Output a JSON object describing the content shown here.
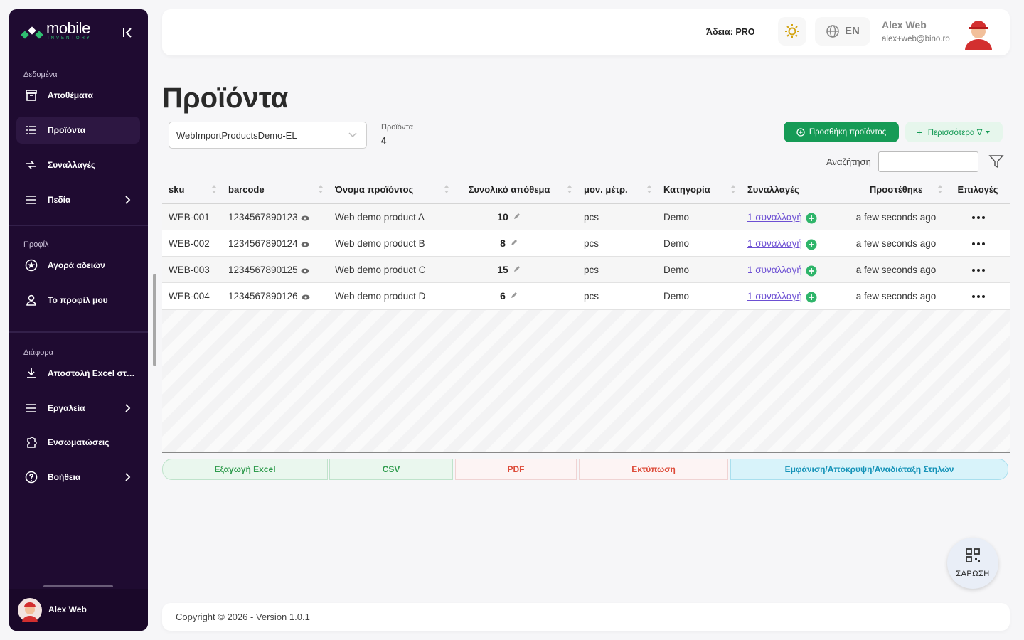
{
  "sidebar": {
    "logo": "mobile",
    "logo_sub": "INVENTORY",
    "sections": [
      {
        "title": "Δεδομένα",
        "items": [
          "Αποθέματα",
          "Προϊόντα",
          "Συναλλαγές",
          "Πεδία"
        ]
      },
      {
        "title": "Προφίλ",
        "items": [
          "Αγορά αδειών",
          "Το προφίλ μου"
        ]
      },
      {
        "title": "Διάφορα",
        "items": [
          "Αποστολή Excel στο email",
          "Εργαλεία",
          "Ενσωματώσεις",
          "Βοήθεια"
        ]
      }
    ],
    "user": "Alex Web"
  },
  "header": {
    "license": "Άδεια: PRO",
    "language": "EN",
    "user_name": "Alex Web",
    "user_email": "alex+web@bino.ro"
  },
  "page": {
    "title": "Προϊόντα",
    "dataset": "WebImportProductsDemo-EL",
    "count_label": "Προϊόντα",
    "count": 4,
    "add_button": "Προσθήκη προϊόντος",
    "more_button": "Περισσότερα ∇",
    "search_label": "Αναζήτηση"
  },
  "table": {
    "columns": [
      "sku",
      "barcode",
      "Όνομα προϊόντος",
      "Συνολικό απόθεμα",
      "μον. μέτρ.",
      "Κατηγορία",
      "Συναλλαγές",
      "Προστέθηκε",
      "Επιλογές"
    ],
    "rows": [
      [
        "WEB-001",
        "1234567890123",
        "Web demo product A",
        10,
        "pcs",
        "Demo",
        "1 συναλλαγή",
        "a few seconds ago"
      ],
      [
        "WEB-002",
        "1234567890124",
        "Web demo product B",
        8,
        "pcs",
        "Demo",
        "1 συναλλαγή",
        "a few seconds ago"
      ],
      [
        "WEB-003",
        "1234567890125",
        "Web demo product C",
        15,
        "pcs",
        "Demo",
        "1 συναλλαγή",
        "a few seconds ago"
      ],
      [
        "WEB-004",
        "1234567890126",
        "Web demo product D",
        6,
        "pcs",
        "Demo",
        "1 συναλλαγή",
        "a few seconds ago"
      ]
    ]
  },
  "export_buttons": [
    "Εξαγωγή Excel",
    "CSV",
    "PDF",
    "Εκτύπωση",
    "Εμφάνιση/Απόκρυψη/Αναδιάταξη Στηλών"
  ],
  "scan_button": "ΣΑΡΩΣΗ",
  "footer": "Copyright © 2026 - Version 1.0.1"
}
